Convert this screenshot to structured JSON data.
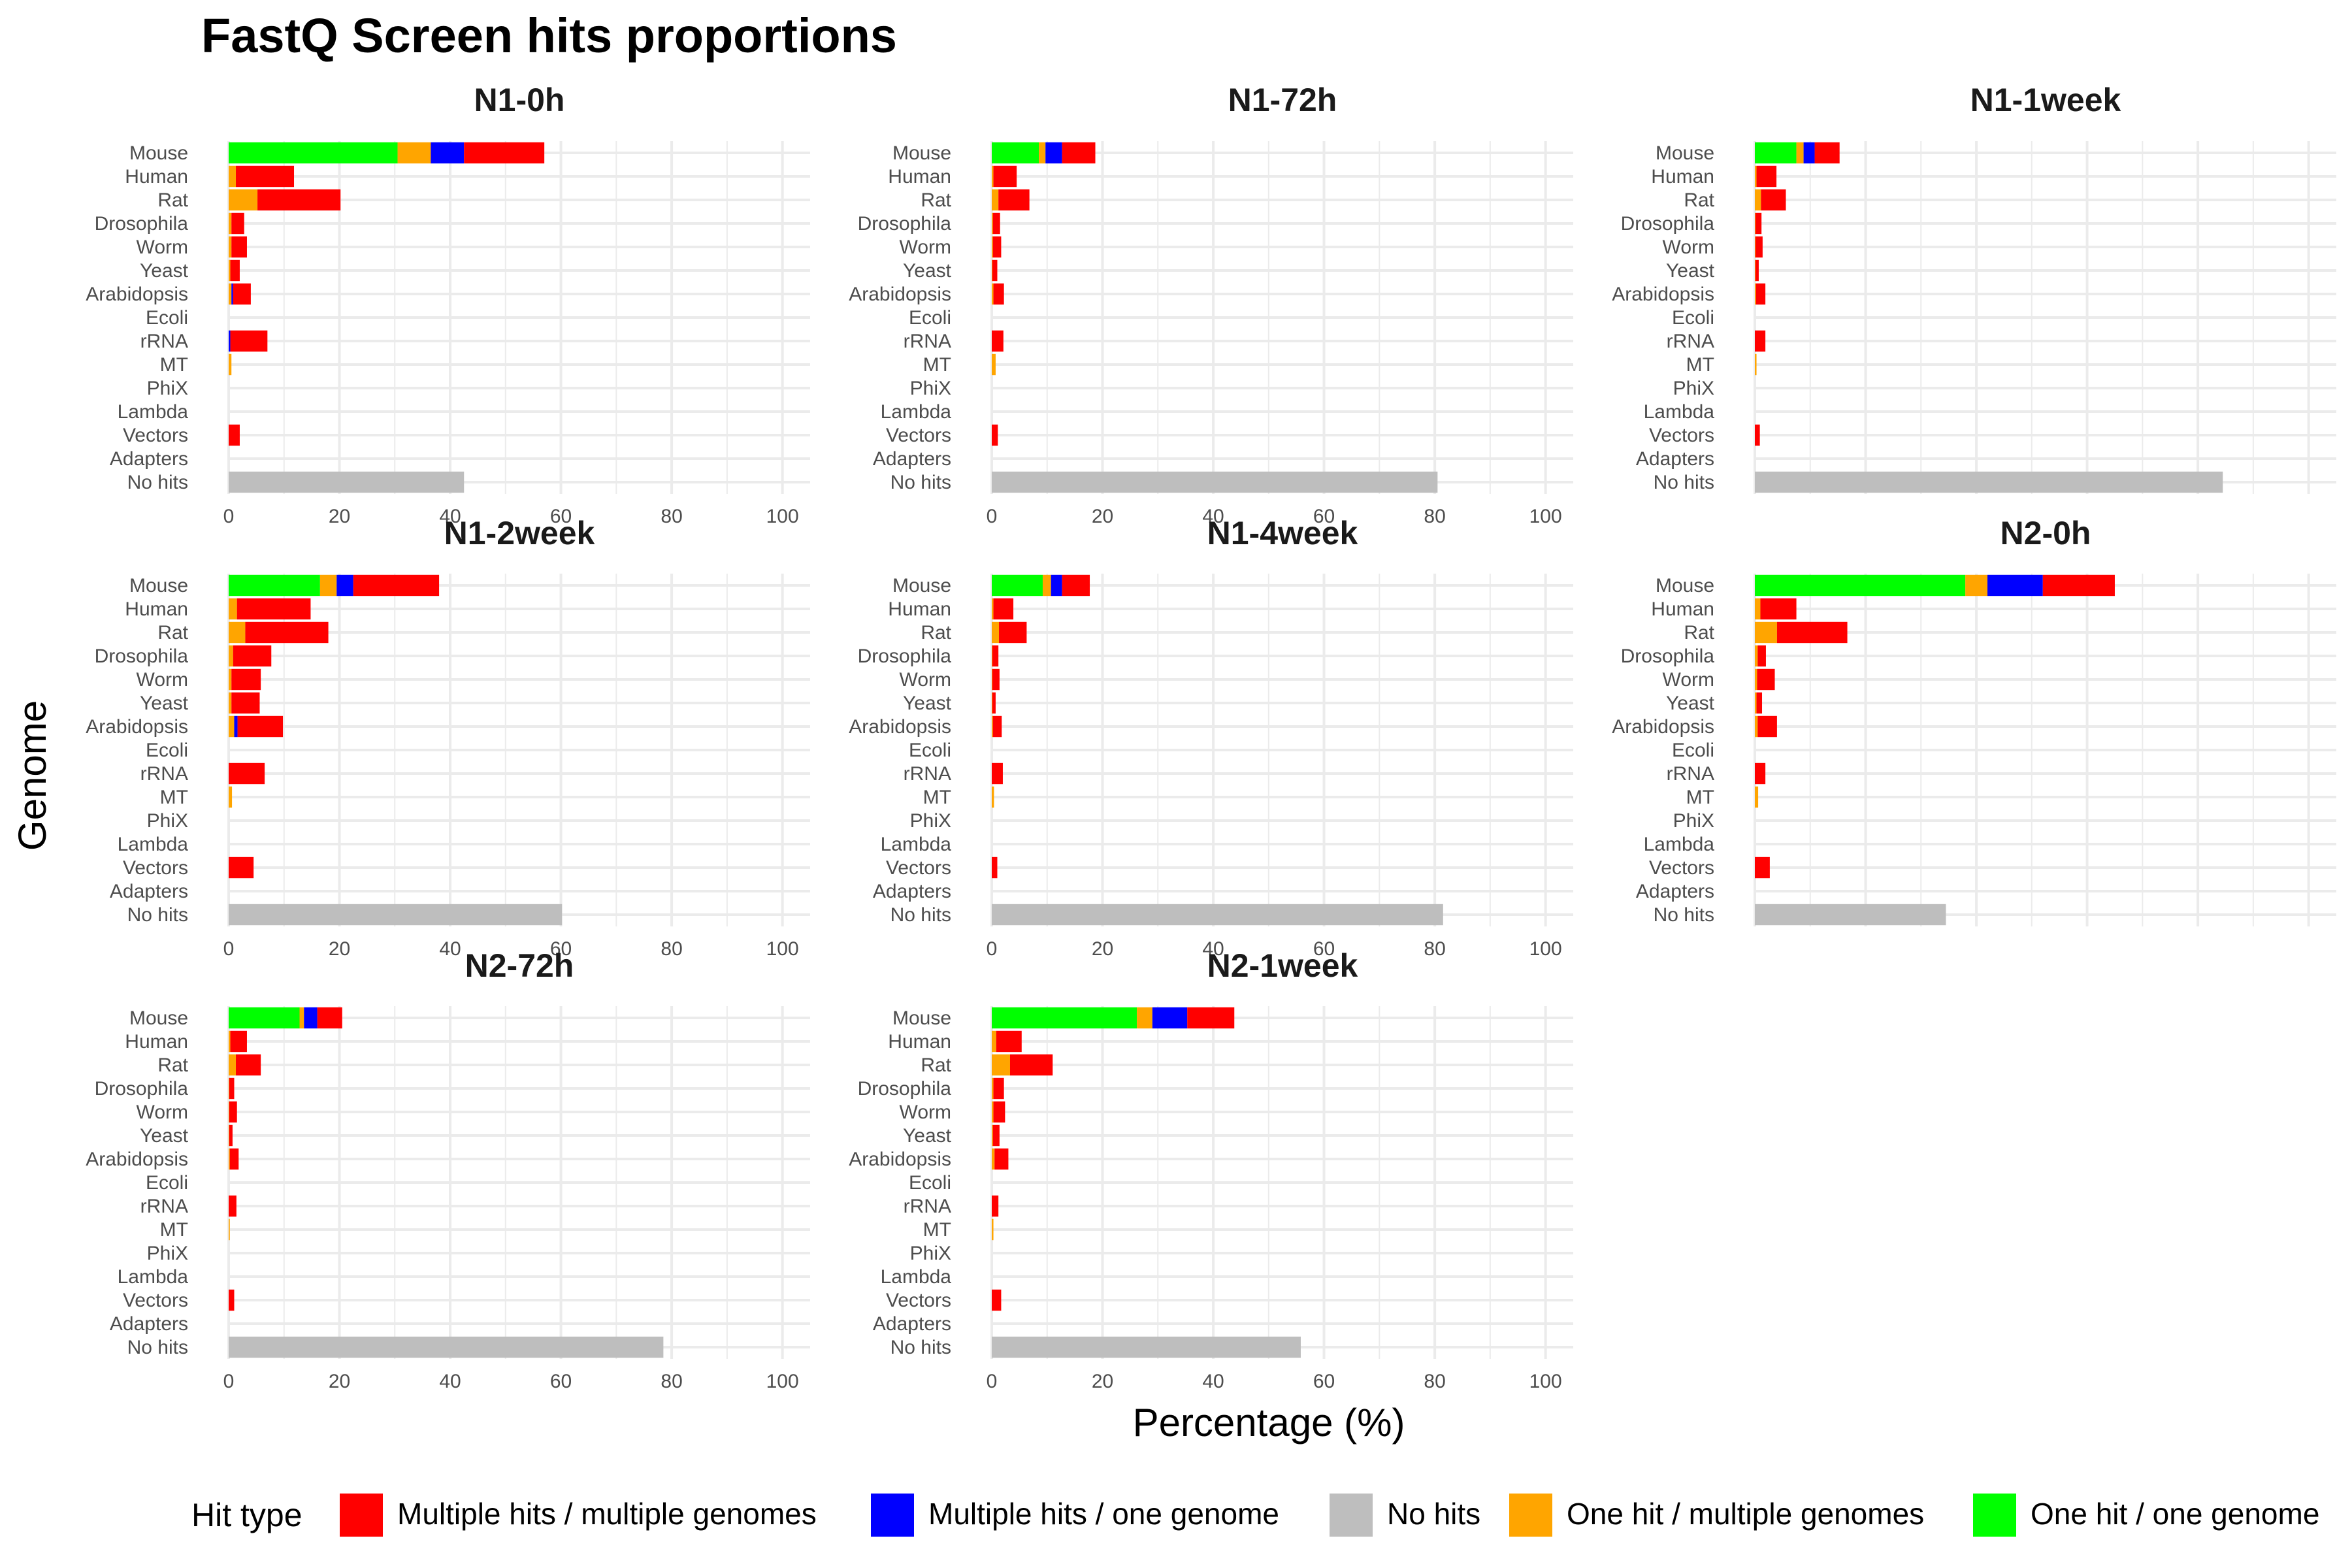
{
  "chart_data": {
    "type": "bar",
    "orientation": "horizontal",
    "stacked": true,
    "title": "FastQ Screen hits proportions",
    "xlabel": "Percentage (%)",
    "ylabel": "Genome",
    "xlim": [
      0,
      105
    ],
    "xticks": [
      0,
      20,
      40,
      60,
      80,
      100
    ],
    "grid": true,
    "legend": {
      "title": "Hit type",
      "position": "bottom",
      "items": [
        {
          "name": "Multiple hits / multiple genomes",
          "color": "#FF0000"
        },
        {
          "name": "Multiple hits / one genome",
          "color": "#0000FF"
        },
        {
          "name": "No hits",
          "color": "#BEBEBE"
        },
        {
          "name": "One hit / multiple genomes",
          "color": "#FFA500"
        },
        {
          "name": "One hit / one genome",
          "color": "#00FF00"
        }
      ]
    },
    "categories": [
      "Mouse",
      "Human",
      "Rat",
      "Drosophila",
      "Worm",
      "Yeast",
      "Arabidopsis",
      "Ecoli",
      "rRNA",
      "MT",
      "PhiX",
      "Lambda",
      "Vectors",
      "Adapters",
      "No hits"
    ],
    "stack_order": [
      "One hit / one genome",
      "One hit / multiple genomes",
      "Multiple hits / one genome",
      "Multiple hits / multiple genomes",
      "No hits"
    ],
    "facets": [
      {
        "name": "N1-0h",
        "series": [
          {
            "name": "One hit / one genome",
            "values": [
              30.5,
              0,
              0,
              0,
              0,
              0,
              0,
              0,
              0,
              0,
              0,
              0,
              0,
              0,
              0
            ]
          },
          {
            "name": "One hit / multiple genomes",
            "values": [
              6,
              1.3,
              5.2,
              0.5,
              0.5,
              0.3,
              0.5,
              0,
              0,
              0.5,
              0,
              0,
              0,
              0,
              0
            ]
          },
          {
            "name": "Multiple hits / one genome",
            "values": [
              6,
              0,
              0,
              0,
              0,
              0,
              0.3,
              0,
              0.3,
              0,
              0,
              0,
              0,
              0,
              0
            ]
          },
          {
            "name": "Multiple hits / multiple genomes",
            "values": [
              14.5,
              10.5,
              15,
              2.3,
              2.8,
              1.7,
              3.2,
              0,
              6.7,
              0,
              0,
              0,
              2,
              0,
              0
            ]
          },
          {
            "name": "No hits",
            "values": [
              0,
              0,
              0,
              0,
              0,
              0,
              0,
              0,
              0,
              0,
              0,
              0,
              0,
              0,
              42.5
            ]
          }
        ]
      },
      {
        "name": "N1-72h",
        "series": [
          {
            "name": "One hit / one genome",
            "values": [
              8.5,
              0,
              0,
              0,
              0,
              0,
              0,
              0,
              0,
              0,
              0,
              0,
              0,
              0,
              0
            ]
          },
          {
            "name": "One hit / multiple genomes",
            "values": [
              1.2,
              0.3,
              1.2,
              0.2,
              0.2,
              0.1,
              0.3,
              0,
              0,
              0.7,
              0,
              0,
              0,
              0,
              0
            ]
          },
          {
            "name": "Multiple hits / one genome",
            "values": [
              3,
              0,
              0,
              0,
              0,
              0,
              0,
              0,
              0,
              0,
              0,
              0,
              0,
              0,
              0
            ]
          },
          {
            "name": "Multiple hits / multiple genomes",
            "values": [
              6,
              4.2,
              5.6,
              1.3,
              1.5,
              0.9,
              1.9,
              0,
              2.1,
              0,
              0,
              0,
              1.1,
              0,
              0
            ]
          },
          {
            "name": "No hits",
            "values": [
              0,
              0,
              0,
              0,
              0,
              0,
              0,
              0,
              0,
              0,
              0,
              0,
              0,
              0,
              80.5
            ]
          }
        ]
      },
      {
        "name": "N1-1week",
        "series": [
          {
            "name": "One hit / one genome",
            "values": [
              7.5,
              0,
              0,
              0,
              0,
              0,
              0,
              0,
              0,
              0,
              0,
              0,
              0,
              0,
              0
            ]
          },
          {
            "name": "One hit / multiple genomes",
            "values": [
              1.3,
              0.3,
              1.1,
              0.1,
              0.1,
              0.1,
              0.2,
              0,
              0,
              0.3,
              0,
              0,
              0,
              0,
              0
            ]
          },
          {
            "name": "Multiple hits / one genome",
            "values": [
              2,
              0,
              0,
              0,
              0,
              0,
              0,
              0,
              0,
              0,
              0,
              0,
              0,
              0,
              0
            ]
          },
          {
            "name": "Multiple hits / multiple genomes",
            "values": [
              4.5,
              3.6,
              4.5,
              1.1,
              1.3,
              0.6,
              1.7,
              0,
              1.9,
              0,
              0,
              0,
              0.9,
              0,
              0
            ]
          },
          {
            "name": "No hits",
            "values": [
              0,
              0,
              0,
              0,
              0,
              0,
              0,
              0,
              0,
              0,
              0,
              0,
              0,
              0,
              84.5
            ]
          }
        ]
      },
      {
        "name": "N1-2week",
        "series": [
          {
            "name": "One hit / one genome",
            "values": [
              16.5,
              0,
              0,
              0,
              0,
              0,
              0,
              0,
              0,
              0,
              0,
              0,
              0,
              0,
              0
            ]
          },
          {
            "name": "One hit / multiple genomes",
            "values": [
              3,
              1.5,
              3,
              0.8,
              0.5,
              0.5,
              1,
              0,
              0,
              0.6,
              0,
              0,
              0,
              0,
              0
            ]
          },
          {
            "name": "Multiple hits / one genome",
            "values": [
              3,
              0,
              0,
              0,
              0,
              0,
              0.6,
              0,
              0,
              0,
              0,
              0,
              0,
              0,
              0
            ]
          },
          {
            "name": "Multiple hits / multiple genomes",
            "values": [
              15.5,
              13.3,
              15,
              6.9,
              5.3,
              5.1,
              8.2,
              0,
              6.5,
              0,
              0,
              0,
              4.5,
              0,
              0
            ]
          },
          {
            "name": "No hits",
            "values": [
              0,
              0,
              0,
              0,
              0,
              0,
              0,
              0,
              0,
              0,
              0,
              0,
              0,
              0,
              60.2
            ]
          }
        ]
      },
      {
        "name": "N1-4week",
        "series": [
          {
            "name": "One hit / one genome",
            "values": [
              9.2,
              0,
              0,
              0,
              0,
              0,
              0,
              0,
              0,
              0,
              0,
              0,
              0,
              0,
              0
            ]
          },
          {
            "name": "One hit / multiple genomes",
            "values": [
              1.5,
              0.3,
              1.3,
              0.1,
              0.1,
              0.1,
              0.2,
              0,
              0,
              0.4,
              0,
              0,
              0,
              0,
              0
            ]
          },
          {
            "name": "Multiple hits / one genome",
            "values": [
              2,
              0,
              0,
              0,
              0,
              0,
              0,
              0,
              0,
              0,
              0,
              0,
              0,
              0,
              0
            ]
          },
          {
            "name": "Multiple hits / multiple genomes",
            "values": [
              5,
              3.6,
              5,
              1.1,
              1.3,
              0.6,
              1.6,
              0,
              2,
              0,
              0,
              0,
              1,
              0,
              0
            ]
          },
          {
            "name": "No hits",
            "values": [
              0,
              0,
              0,
              0,
              0,
              0,
              0,
              0,
              0,
              0,
              0,
              0,
              0,
              0,
              81.5
            ]
          }
        ]
      },
      {
        "name": "N2-0h",
        "series": [
          {
            "name": "One hit / one genome",
            "values": [
              38,
              0,
              0,
              0,
              0,
              0,
              0,
              0,
              0,
              0,
              0,
              0,
              0,
              0,
              0
            ]
          },
          {
            "name": "One hit / multiple genomes",
            "values": [
              4,
              1,
              4,
              0.5,
              0.4,
              0.3,
              0.5,
              0,
              0,
              0.6,
              0,
              0,
              0,
              0,
              0
            ]
          },
          {
            "name": "Multiple hits / one genome",
            "values": [
              10,
              0,
              0,
              0,
              0,
              0,
              0,
              0,
              0,
              0,
              0,
              0,
              0,
              0,
              0
            ]
          },
          {
            "name": "Multiple hits / multiple genomes",
            "values": [
              13,
              6.5,
              12.7,
              1.5,
              3.2,
              1,
              3.5,
              0,
              1.9,
              0,
              0,
              0,
              2.7,
              0,
              0
            ]
          },
          {
            "name": "No hits",
            "values": [
              0,
              0,
              0,
              0,
              0,
              0,
              0,
              0,
              0,
              0,
              0,
              0,
              0,
              0,
              34.5
            ]
          }
        ]
      },
      {
        "name": "N2-72h",
        "series": [
          {
            "name": "One hit / one genome",
            "values": [
              12.8,
              0,
              0,
              0,
              0,
              0,
              0,
              0,
              0,
              0,
              0,
              0,
              0,
              0,
              0
            ]
          },
          {
            "name": "One hit / multiple genomes",
            "values": [
              0.8,
              0.3,
              1.3,
              0.1,
              0.1,
              0.1,
              0.2,
              0,
              0,
              0.2,
              0,
              0,
              0,
              0,
              0
            ]
          },
          {
            "name": "Multiple hits / one genome",
            "values": [
              2.4,
              0,
              0,
              0,
              0,
              0,
              0,
              0,
              0,
              0,
              0,
              0,
              0,
              0,
              0
            ]
          },
          {
            "name": "Multiple hits / multiple genomes",
            "values": [
              4.5,
              3,
              4.5,
              0.9,
              1.4,
              0.6,
              1.6,
              0,
              1.4,
              0,
              0,
              0,
              1,
              0,
              0
            ]
          },
          {
            "name": "No hits",
            "values": [
              0,
              0,
              0,
              0,
              0,
              0,
              0,
              0,
              0,
              0,
              0,
              0,
              0,
              0,
              78.5
            ]
          }
        ]
      },
      {
        "name": "N2-1week",
        "series": [
          {
            "name": "One hit / one genome",
            "values": [
              26.2,
              0,
              0,
              0,
              0,
              0,
              0,
              0,
              0,
              0,
              0,
              0,
              0,
              0,
              0
            ]
          },
          {
            "name": "One hit / multiple genomes",
            "values": [
              2.8,
              0.8,
              3.3,
              0.3,
              0.3,
              0.2,
              0.5,
              0,
              0,
              0.3,
              0,
              0,
              0,
              0,
              0
            ]
          },
          {
            "name": "Multiple hits / one genome",
            "values": [
              6.3,
              0,
              0,
              0,
              0,
              0,
              0,
              0,
              0,
              0,
              0,
              0,
              0,
              0,
              0
            ]
          },
          {
            "name": "Multiple hits / multiple genomes",
            "values": [
              8.5,
              4.6,
              7.7,
              1.9,
              2.1,
              1.2,
              2.5,
              0,
              1.2,
              0,
              0,
              0,
              1.7,
              0,
              0
            ]
          },
          {
            "name": "No hits",
            "values": [
              0,
              0,
              0,
              0,
              0,
              0,
              0,
              0,
              0,
              0,
              0,
              0,
              0,
              0,
              55.8
            ]
          }
        ]
      }
    ]
  }
}
